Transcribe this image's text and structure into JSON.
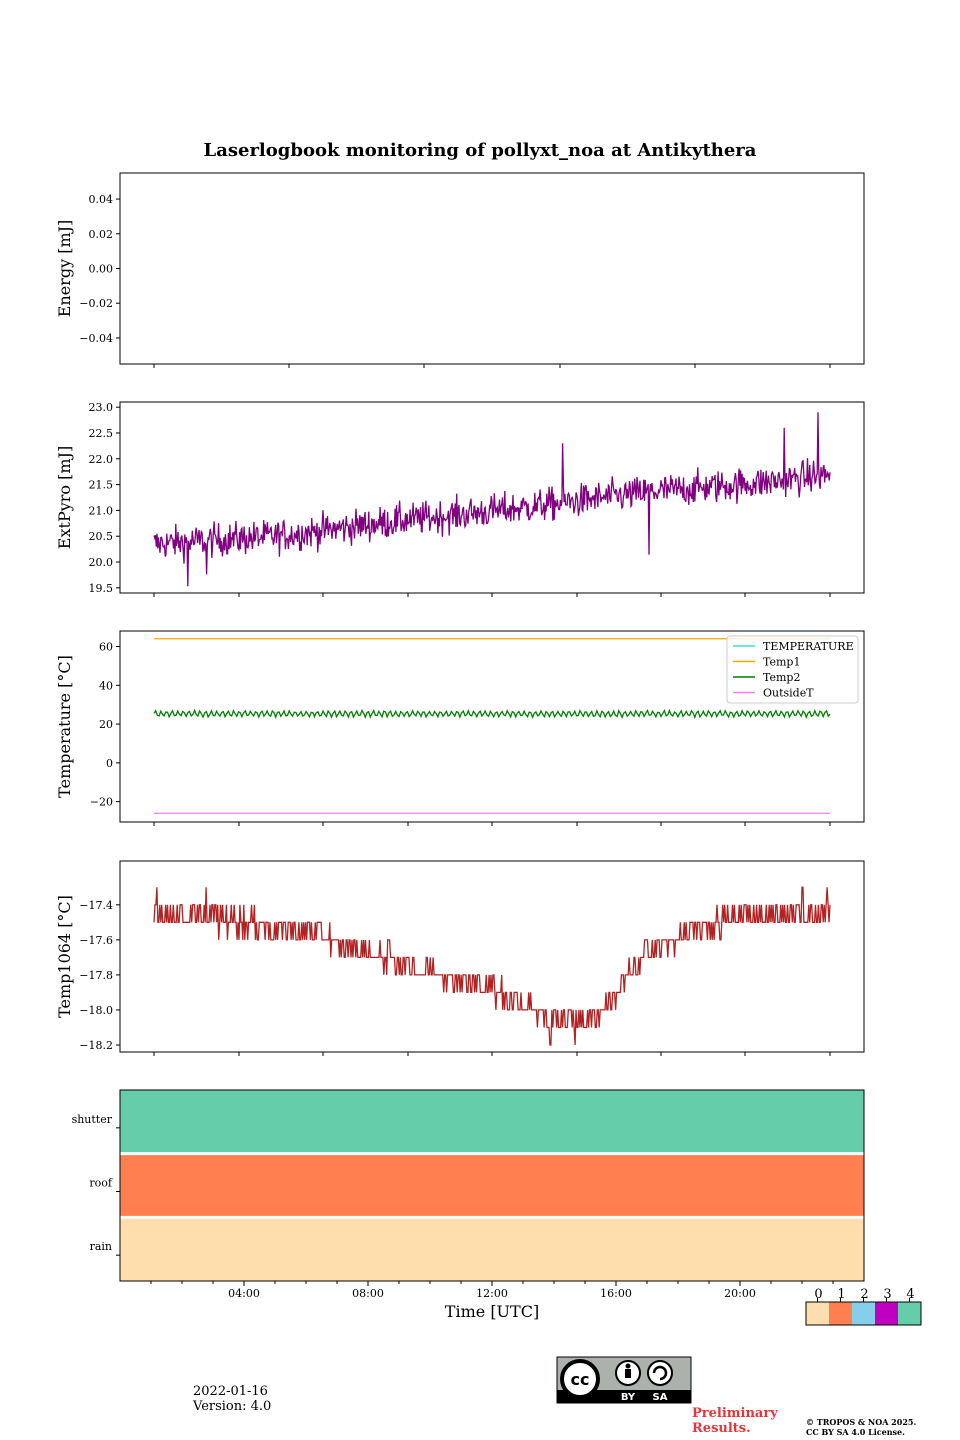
{
  "title": "Laserlogbook monitoring of pollyxt_noa at Antikythera",
  "date": "2022-01-16",
  "version": "Version: 4.0",
  "preliminary": [
    "Preliminary",
    "Results."
  ],
  "copyright": [
    "© TROPOS & NOA 2025.",
    "CC BY SA 4.0 License."
  ],
  "cc_badge": {
    "by": "BY",
    "sa": "SA"
  },
  "colors": {
    "extpyro": "#800080",
    "temp1064": "#b22222",
    "TEMPERATURE": "#40e0d0",
    "Temp1": "#ffa500",
    "Temp2": "#008000",
    "OutsideT": "#ee82ee",
    "state0": "#ffdead",
    "state1": "#ff7f50",
    "state2": "#87ceeb",
    "state3": "#c000c0",
    "state4": "#66cdaa"
  },
  "chart_data": [
    {
      "type": "line",
      "name": "energy",
      "ylabel": "Energy [mJ]",
      "ylim": [
        -0.055,
        0.055
      ],
      "yticks": [
        -0.04,
        -0.02,
        0.0,
        0.02,
        0.04
      ],
      "ytick_labels": [
        "−0.04",
        "−0.02",
        "0.00",
        "0.02",
        "0.04"
      ],
      "series": []
    },
    {
      "type": "line",
      "name": "extpyro",
      "ylabel": "ExtPyro [mJ]",
      "ylim": [
        19.4,
        23.1
      ],
      "yticks": [
        19.5,
        20.0,
        20.5,
        21.0,
        21.5,
        22.0,
        22.5,
        23.0
      ],
      "ytick_labels": [
        "19.5",
        "20.0",
        "20.5",
        "21.0",
        "21.5",
        "22.0",
        "22.5",
        "23.0"
      ],
      "x_range_hours": [
        1.0,
        23.0
      ],
      "series": [
        {
          "trend": [
            [
              1.0,
              20.35
            ],
            [
              5.0,
              20.5
            ],
            [
              9.0,
              20.8
            ],
            [
              13.0,
              21.05
            ],
            [
              17.0,
              21.35
            ],
            [
              21.0,
              21.55
            ],
            [
              23.0,
              21.7
            ]
          ],
          "spread": 0.55,
          "extremes": [
            [
              2.1,
              19.53
            ],
            [
              2.7,
              19.76
            ],
            [
              14.3,
              22.3
            ],
            [
              17.1,
              20.14
            ],
            [
              21.5,
              22.6
            ],
            [
              22.6,
              22.9
            ]
          ]
        }
      ]
    },
    {
      "type": "line",
      "name": "temperature",
      "ylabel": "Temperature [°C]",
      "ylim": [
        -30.5,
        68
      ],
      "yticks": [
        -20,
        0,
        20,
        40,
        60
      ],
      "ytick_labels": [
        "−20",
        "0",
        "20",
        "40",
        "60"
      ],
      "legend_position": "top-right",
      "x_range_hours": [
        1.0,
        23.0
      ],
      "series": [
        {
          "name": "TEMPERATURE",
          "values": []
        },
        {
          "name": "Temp1",
          "constant": 64
        },
        {
          "name": "Temp2",
          "mean": 25.3,
          "amplitude": 1.5
        },
        {
          "name": "OutsideT",
          "constant": -26
        }
      ]
    },
    {
      "type": "line",
      "name": "temp1064",
      "ylabel": "Temp1064 [°C]",
      "ylim": [
        -18.24,
        -17.15
      ],
      "yticks": [
        -18.2,
        -18.0,
        -17.8,
        -17.6,
        -17.4
      ],
      "ytick_labels": [
        "−18.2",
        "−18.0",
        "−17.8",
        "−17.6",
        "−17.4"
      ],
      "x_range_hours": [
        1.0,
        23.0
      ],
      "series": [
        {
          "trend": [
            [
              1.0,
              -17.45
            ],
            [
              4.0,
              -17.5
            ],
            [
              6.0,
              -17.55
            ],
            [
              7.5,
              -17.65
            ],
            [
              9.0,
              -17.73
            ],
            [
              11.0,
              -17.82
            ],
            [
              12.5,
              -17.92
            ],
            [
              14.0,
              -18.05
            ],
            [
              15.3,
              -18.05
            ],
            [
              16.0,
              -17.9
            ],
            [
              17.0,
              -17.68
            ],
            [
              18.5,
              -17.55
            ],
            [
              20.0,
              -17.48
            ],
            [
              23.0,
              -17.45
            ]
          ],
          "step": 0.1,
          "spikes": [
            [
              1.1,
              -17.3
            ],
            [
              2.7,
              -17.3
            ],
            [
              13.9,
              -18.2
            ],
            [
              14.7,
              -18.2
            ],
            [
              22.1,
              -17.3
            ],
            [
              22.9,
              -17.3
            ]
          ]
        }
      ]
    },
    {
      "type": "heatmap",
      "name": "status",
      "rows": [
        "shutter",
        "roof",
        "rain"
      ],
      "row_state": [
        4,
        1,
        0
      ],
      "xlabel": "Time [UTC]",
      "xticks": [
        "04:00",
        "08:00",
        "12:00",
        "16:00",
        "20:00"
      ],
      "colorbar_labels": [
        "0",
        "1",
        "2",
        "3",
        "4"
      ]
    }
  ]
}
